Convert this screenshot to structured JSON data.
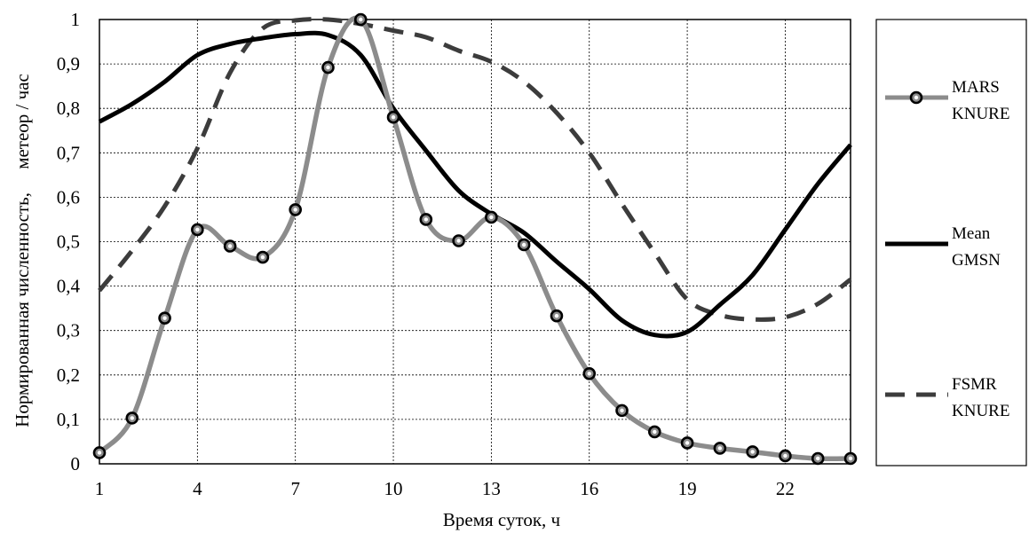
{
  "chart_data": {
    "type": "line",
    "xlabel": "Время суток, ч",
    "ylabel": "Нормированная численность,     метеор / час",
    "xlim": [
      1,
      24
    ],
    "ylim": [
      0,
      1
    ],
    "xticks": [
      1,
      4,
      7,
      10,
      13,
      16,
      19,
      22
    ],
    "xtick_labels": [
      "1",
      "4",
      "7",
      "10",
      "13",
      "16",
      "19",
      "22"
    ],
    "yticks": [
      0,
      0.1,
      0.2,
      0.3,
      0.4,
      0.5,
      0.6,
      0.7,
      0.8,
      0.9,
      1
    ],
    "ytick_labels": [
      "0",
      "0,1",
      "0,2",
      "0,3",
      "0,4",
      "0,5",
      "0,6",
      "0,7",
      "0,8",
      "0,9",
      "1"
    ],
    "grid": true,
    "legend_position": "right",
    "series": [
      {
        "name_lines": [
          "MARS",
          "KNURE"
        ],
        "color": "#8c8c8c",
        "style": "solid-markers",
        "x": [
          1,
          2,
          3,
          4,
          5,
          6,
          7,
          8,
          9,
          10,
          11,
          12,
          13,
          14,
          15,
          16,
          17,
          18,
          19,
          20,
          21,
          22,
          23,
          24
        ],
        "y": [
          0.025,
          0.103,
          0.328,
          0.527,
          0.49,
          0.465,
          0.572,
          0.892,
          1.0,
          0.78,
          0.55,
          0.502,
          0.555,
          0.493,
          0.333,
          0.203,
          0.12,
          0.072,
          0.047,
          0.035,
          0.027,
          0.018,
          0.012,
          0.012
        ]
      },
      {
        "name_lines": [
          "Mean",
          "GMSN"
        ],
        "color": "#000000",
        "style": "solid",
        "x": [
          1,
          2,
          3,
          4,
          5,
          6,
          7,
          8,
          9,
          10,
          11,
          12,
          13,
          14,
          15,
          16,
          17,
          18,
          19,
          20,
          21,
          22,
          23,
          24
        ],
        "y": [
          0.77,
          0.81,
          0.86,
          0.92,
          0.945,
          0.958,
          0.967,
          0.965,
          0.92,
          0.8,
          0.705,
          0.615,
          0.562,
          0.52,
          0.455,
          0.393,
          0.323,
          0.29,
          0.297,
          0.358,
          0.425,
          0.527,
          0.63,
          0.718
        ]
      },
      {
        "name_lines": [
          "FSMR",
          "KNURE"
        ],
        "color": "#3c3c3c",
        "style": "dashed",
        "x": [
          1,
          2,
          3,
          4,
          5,
          6,
          7,
          8,
          9,
          10,
          11,
          12,
          13,
          14,
          15,
          16,
          17,
          18,
          19,
          20,
          21,
          22,
          23,
          24
        ],
        "y": [
          0.39,
          0.48,
          0.58,
          0.71,
          0.88,
          0.98,
          0.998,
          1.0,
          0.99,
          0.975,
          0.96,
          0.93,
          0.905,
          0.86,
          0.79,
          0.7,
          0.585,
          0.475,
          0.37,
          0.335,
          0.325,
          0.33,
          0.36,
          0.415
        ]
      }
    ]
  }
}
